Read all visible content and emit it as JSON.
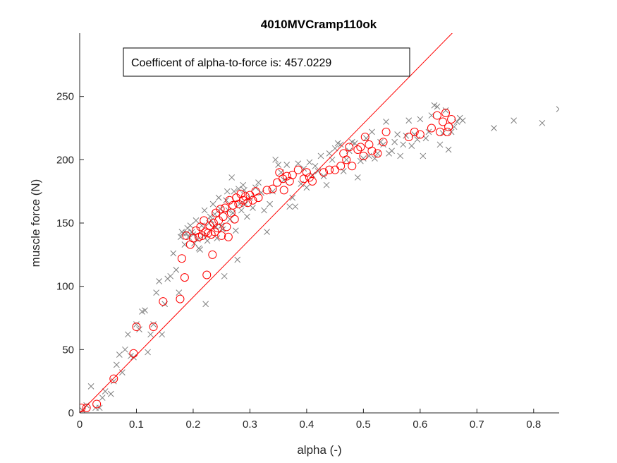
{
  "chart_data": {
    "type": "scatter",
    "title": "4010MVCramp110ok",
    "xlabel": "alpha (-)",
    "ylabel": "muscle force (N)",
    "xlim": [
      0,
      0.845
    ],
    "ylim": [
      0,
      300
    ],
    "xticks": [
      "0",
      "0.1",
      "0.2",
      "0.3",
      "0.4",
      "0.5",
      "0.6",
      "0.7",
      "0.8"
    ],
    "yticks": [
      "0",
      "50",
      "100",
      "150",
      "200",
      "250"
    ],
    "xtick_values": [
      0,
      0.1,
      0.2,
      0.3,
      0.4,
      0.5,
      0.6,
      0.7,
      0.8
    ],
    "ytick_values": [
      0,
      50,
      100,
      150,
      200,
      250
    ],
    "grid": false,
    "annotation": "Coefficent of alpha-to-force is: 457.0229",
    "colors": {
      "fit_line": "#ff0000",
      "circles": "#ff0000",
      "crosses": "#7f7f7f",
      "axes": "#262626"
    },
    "fit_line": {
      "slope": 457.0229,
      "intercept": 0
    },
    "series": [
      {
        "marker": "x",
        "color": "#7f7f7f",
        "points": [
          [
            0.005,
            2
          ],
          [
            0.012,
            6
          ],
          [
            0.02,
            21
          ],
          [
            0.028,
            4
          ],
          [
            0.035,
            4
          ],
          [
            0.04,
            12
          ],
          [
            0.045,
            17
          ],
          [
            0.055,
            15
          ],
          [
            0.06,
            25
          ],
          [
            0.065,
            38
          ],
          [
            0.07,
            46
          ],
          [
            0.075,
            32
          ],
          [
            0.08,
            50
          ],
          [
            0.085,
            62
          ],
          [
            0.09,
            45
          ],
          [
            0.095,
            44
          ],
          [
            0.1,
            70
          ],
          [
            0.105,
            66
          ],
          [
            0.11,
            80
          ],
          [
            0.115,
            81
          ],
          [
            0.12,
            48
          ],
          [
            0.125,
            62
          ],
          [
            0.13,
            70
          ],
          [
            0.135,
            95
          ],
          [
            0.14,
            104
          ],
          [
            0.145,
            62
          ],
          [
            0.15,
            86
          ],
          [
            0.155,
            106
          ],
          [
            0.16,
            108
          ],
          [
            0.165,
            126
          ],
          [
            0.17,
            113
          ],
          [
            0.175,
            95
          ],
          [
            0.178,
            139
          ],
          [
            0.18,
            143
          ],
          [
            0.182,
            142
          ],
          [
            0.185,
            133
          ],
          [
            0.188,
            142
          ],
          [
            0.19,
            146
          ],
          [
            0.192,
            139
          ],
          [
            0.195,
            148
          ],
          [
            0.198,
            143
          ],
          [
            0.2,
            141
          ],
          [
            0.202,
            134
          ],
          [
            0.205,
            152
          ],
          [
            0.208,
            137
          ],
          [
            0.21,
            130
          ],
          [
            0.212,
            129
          ],
          [
            0.215,
            148
          ],
          [
            0.218,
            140
          ],
          [
            0.22,
            160
          ],
          [
            0.222,
            86
          ],
          [
            0.225,
            136
          ],
          [
            0.228,
            150
          ],
          [
            0.23,
            155
          ],
          [
            0.232,
            152
          ],
          [
            0.235,
            165
          ],
          [
            0.238,
            157
          ],
          [
            0.24,
            147
          ],
          [
            0.242,
            138
          ],
          [
            0.245,
            170
          ],
          [
            0.248,
            161
          ],
          [
            0.25,
            148
          ],
          [
            0.252,
            145
          ],
          [
            0.255,
            108
          ],
          [
            0.258,
            168
          ],
          [
            0.26,
            175
          ],
          [
            0.262,
            160
          ],
          [
            0.265,
            153
          ],
          [
            0.268,
            186
          ],
          [
            0.27,
            158
          ],
          [
            0.272,
            175
          ],
          [
            0.275,
            144
          ],
          [
            0.278,
            121
          ],
          [
            0.28,
            177
          ],
          [
            0.282,
            165
          ],
          [
            0.285,
            160
          ],
          [
            0.288,
            180
          ],
          [
            0.29,
            176
          ],
          [
            0.292,
            165
          ],
          [
            0.295,
            155
          ],
          [
            0.3,
            170
          ],
          [
            0.305,
            162
          ],
          [
            0.31,
            178
          ],
          [
            0.315,
            182
          ],
          [
            0.32,
            174
          ],
          [
            0.325,
            160
          ],
          [
            0.33,
            143
          ],
          [
            0.335,
            165
          ],
          [
            0.34,
            175
          ],
          [
            0.345,
            200
          ],
          [
            0.35,
            196
          ],
          [
            0.355,
            190
          ],
          [
            0.36,
            184
          ],
          [
            0.365,
            196
          ],
          [
            0.37,
            163
          ],
          [
            0.375,
            170
          ],
          [
            0.38,
            163
          ],
          [
            0.385,
            197
          ],
          [
            0.39,
            181
          ],
          [
            0.395,
            193
          ],
          [
            0.4,
            178
          ],
          [
            0.405,
            198
          ],
          [
            0.41,
            188
          ],
          [
            0.415,
            195
          ],
          [
            0.42,
            191
          ],
          [
            0.425,
            203
          ],
          [
            0.43,
            187
          ],
          [
            0.435,
            180
          ],
          [
            0.44,
            205
          ],
          [
            0.445,
            200
          ],
          [
            0.45,
            209
          ],
          [
            0.455,
            213
          ],
          [
            0.46,
            212
          ],
          [
            0.465,
            191
          ],
          [
            0.47,
            200
          ],
          [
            0.475,
            207
          ],
          [
            0.48,
            214
          ],
          [
            0.485,
            213
          ],
          [
            0.49,
            186
          ],
          [
            0.495,
            199
          ],
          [
            0.5,
            201
          ],
          [
            0.505,
            217
          ],
          [
            0.51,
            203
          ],
          [
            0.515,
            222
          ],
          [
            0.52,
            201
          ],
          [
            0.525,
            205
          ],
          [
            0.53,
            214
          ],
          [
            0.535,
            212
          ],
          [
            0.54,
            230
          ],
          [
            0.545,
            205
          ],
          [
            0.55,
            207
          ],
          [
            0.555,
            214
          ],
          [
            0.56,
            220
          ],
          [
            0.565,
            203
          ],
          [
            0.57,
            212
          ],
          [
            0.575,
            219
          ],
          [
            0.58,
            231
          ],
          [
            0.585,
            211
          ],
          [
            0.59,
            220
          ],
          [
            0.595,
            216
          ],
          [
            0.6,
            232
          ],
          [
            0.605,
            203
          ],
          [
            0.61,
            217
          ],
          [
            0.615,
            222
          ],
          [
            0.62,
            235
          ],
          [
            0.625,
            243
          ],
          [
            0.63,
            242
          ],
          [
            0.635,
            212
          ],
          [
            0.64,
            221
          ],
          [
            0.645,
            239
          ],
          [
            0.65,
            208
          ],
          [
            0.655,
            222
          ],
          [
            0.66,
            226
          ],
          [
            0.665,
            230
          ],
          [
            0.67,
            233
          ],
          [
            0.675,
            231
          ],
          [
            0.73,
            225
          ],
          [
            0.765,
            231
          ],
          [
            0.815,
            229
          ],
          [
            0.845,
            240
          ]
        ]
      },
      {
        "marker": "o",
        "color": "#ff0000",
        "points": [
          [
            0.003,
            4
          ],
          [
            0.012,
            4
          ],
          [
            0.03,
            7
          ],
          [
            0.06,
            27
          ],
          [
            0.095,
            47
          ],
          [
            0.1,
            68
          ],
          [
            0.13,
            68
          ],
          [
            0.147,
            88
          ],
          [
            0.177,
            90
          ],
          [
            0.18,
            122
          ],
          [
            0.185,
            107
          ],
          [
            0.188,
            140
          ],
          [
            0.195,
            133
          ],
          [
            0.2,
            138
          ],
          [
            0.205,
            144
          ],
          [
            0.21,
            139
          ],
          [
            0.213,
            147
          ],
          [
            0.216,
            140
          ],
          [
            0.219,
            152
          ],
          [
            0.222,
            143
          ],
          [
            0.224,
            109
          ],
          [
            0.226,
            142
          ],
          [
            0.229,
            148
          ],
          [
            0.232,
            141
          ],
          [
            0.234,
            125
          ],
          [
            0.236,
            150
          ],
          [
            0.238,
            143
          ],
          [
            0.24,
            158
          ],
          [
            0.243,
            146
          ],
          [
            0.245,
            152
          ],
          [
            0.248,
            161
          ],
          [
            0.25,
            140
          ],
          [
            0.253,
            155
          ],
          [
            0.256,
            162
          ],
          [
            0.259,
            147
          ],
          [
            0.262,
            139
          ],
          [
            0.264,
            168
          ],
          [
            0.267,
            158
          ],
          [
            0.27,
            164
          ],
          [
            0.273,
            153
          ],
          [
            0.276,
            170
          ],
          [
            0.28,
            165
          ],
          [
            0.284,
            173
          ],
          [
            0.288,
            168
          ],
          [
            0.292,
            171
          ],
          [
            0.296,
            166
          ],
          [
            0.3,
            172
          ],
          [
            0.305,
            168
          ],
          [
            0.31,
            175
          ],
          [
            0.315,
            170
          ],
          [
            0.33,
            176
          ],
          [
            0.34,
            177
          ],
          [
            0.348,
            182
          ],
          [
            0.352,
            190
          ],
          [
            0.358,
            185
          ],
          [
            0.36,
            176
          ],
          [
            0.365,
            187
          ],
          [
            0.37,
            183
          ],
          [
            0.375,
            188
          ],
          [
            0.385,
            192
          ],
          [
            0.395,
            185
          ],
          [
            0.4,
            190
          ],
          [
            0.405,
            186
          ],
          [
            0.41,
            183
          ],
          [
            0.43,
            190
          ],
          [
            0.44,
            192
          ],
          [
            0.45,
            192
          ],
          [
            0.46,
            195
          ],
          [
            0.465,
            205
          ],
          [
            0.47,
            200
          ],
          [
            0.475,
            210
          ],
          [
            0.48,
            195
          ],
          [
            0.49,
            208
          ],
          [
            0.495,
            210
          ],
          [
            0.5,
            203
          ],
          [
            0.503,
            218
          ],
          [
            0.51,
            212
          ],
          [
            0.515,
            207
          ],
          [
            0.525,
            205
          ],
          [
            0.535,
            214
          ],
          [
            0.54,
            222
          ],
          [
            0.58,
            218
          ],
          [
            0.59,
            222
          ],
          [
            0.6,
            220
          ],
          [
            0.62,
            225
          ],
          [
            0.63,
            235
          ],
          [
            0.635,
            222
          ],
          [
            0.64,
            230
          ],
          [
            0.645,
            237
          ],
          [
            0.648,
            222
          ],
          [
            0.65,
            226
          ],
          [
            0.655,
            232
          ]
        ]
      }
    ]
  }
}
